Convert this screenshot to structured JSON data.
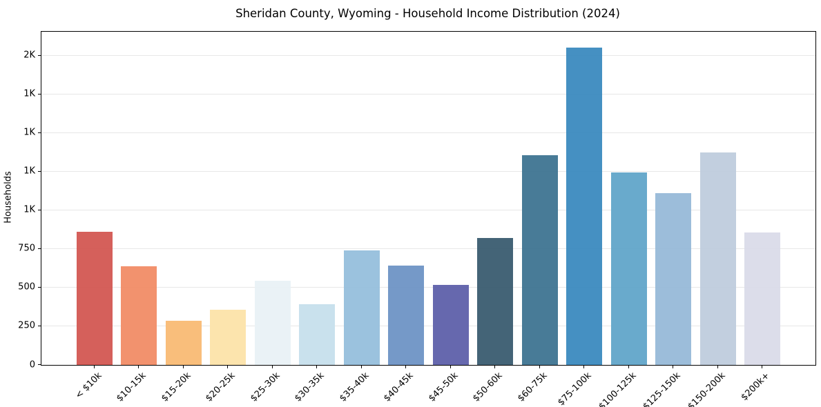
{
  "chart_data": {
    "type": "bar",
    "title": "Sheridan County, Wyoming - Household Income Distribution (2024)",
    "xlabel": "",
    "ylabel": "Households",
    "categories": [
      "< $10k",
      "$10-15k",
      "$15-20k",
      "$20-25k",
      "$25-30k",
      "$30-35k",
      "$35-40k",
      "$40-45k",
      "$45-50k",
      "$50-60k",
      "$60-75k",
      "$75-100k",
      "$100-125k",
      "$125-150k",
      "$150-200k",
      "$200k+"
    ],
    "values": [
      860,
      638,
      285,
      358,
      544,
      392,
      740,
      644,
      517,
      823,
      1356,
      2052,
      1247,
      1113,
      1374,
      858
    ],
    "bar_colors": [
      "#d2544f",
      "#f18a63",
      "#f9b971",
      "#fce2a7",
      "#e8f1f5",
      "#c5dfec",
      "#93bddb",
      "#6a91c4",
      "#5a5ca8",
      "#36586d",
      "#3a718f",
      "#3788bd",
      "#5ea4c8",
      "#94b8d7",
      "#bdcbdd",
      "#d9dae8"
    ],
    "ylim": [
      0,
      2156
    ],
    "yticks": [
      {
        "value": 0,
        "label": "0"
      },
      {
        "value": 250,
        "label": "250"
      },
      {
        "value": 500,
        "label": "500"
      },
      {
        "value": 750,
        "label": "750"
      },
      {
        "value": 1000,
        "label": "1K"
      },
      {
        "value": 1250,
        "label": "1K"
      },
      {
        "value": 1500,
        "label": "1K"
      },
      {
        "value": 1750,
        "label": "1K"
      },
      {
        "value": 2000,
        "label": "2K"
      }
    ],
    "grid": "horizontal",
    "gridline_color": "#e7e7e7",
    "axis_color": "#000000",
    "background": "#ffffff",
    "legend": "none"
  }
}
